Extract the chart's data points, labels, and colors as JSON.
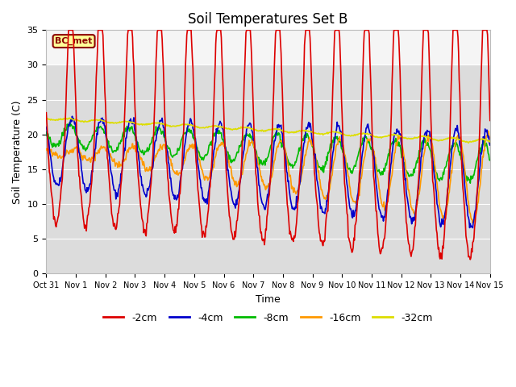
{
  "title": "Soil Temperatures Set B",
  "xlabel": "Time",
  "ylabel": "Soil Temperature (C)",
  "ylim": [
    0,
    35
  ],
  "xlim_days": [
    0,
    15
  ],
  "xtick_labels": [
    "Oct 31",
    "Nov 1",
    "Nov 2",
    "Nov 3",
    "Nov 4",
    "Nov 5",
    "Nov 6",
    "Nov 7",
    "Nov 8",
    "Nov 9",
    "Nov 10",
    "Nov 11",
    "Nov 12",
    "Nov 13",
    "Nov 14",
    "Nov 15"
  ],
  "series": {
    "-2cm": {
      "color": "#dd0000",
      "lw": 1.2
    },
    "-4cm": {
      "color": "#0000cc",
      "lw": 1.2
    },
    "-8cm": {
      "color": "#00bb00",
      "lw": 1.2
    },
    "-16cm": {
      "color": "#ff9900",
      "lw": 1.2
    },
    "-32cm": {
      "color": "#dddd00",
      "lw": 1.2
    }
  },
  "annotation_text": "BC_met",
  "bg_lower": "#dcdcdc",
  "bg_upper": "#f5f5f5",
  "bg_split": 30,
  "title_fontsize": 12,
  "yticks": [
    0,
    5,
    10,
    15,
    20,
    25,
    30,
    35
  ],
  "grid_color": "#ffffff"
}
